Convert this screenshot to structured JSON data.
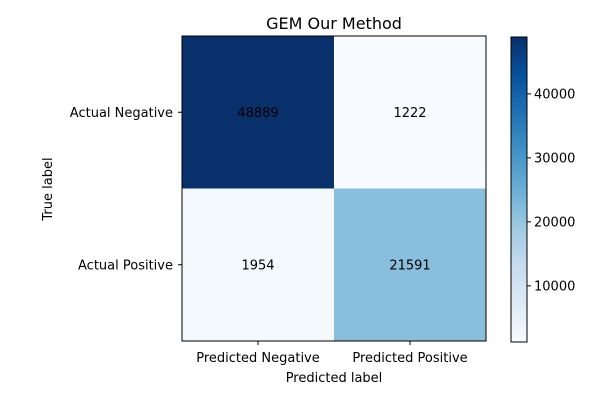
{
  "chart_data": {
    "type": "heatmap",
    "title": "GEM Our Method",
    "xlabel": "Predicted label",
    "ylabel": "True label",
    "x_categories": [
      "Predicted Negative",
      "Predicted Positive"
    ],
    "y_categories": [
      "Actual Negative",
      "Actual Positive"
    ],
    "matrix": [
      [
        48889,
        1222
      ],
      [
        1954,
        21591
      ]
    ],
    "colormap": "Blues",
    "color_min_hex": "#f7fbff",
    "color_max_hex": "#08306b",
    "colorbar": {
      "min": 1222,
      "max": 48889,
      "ticks": [
        10000,
        20000,
        30000,
        40000
      ]
    }
  }
}
